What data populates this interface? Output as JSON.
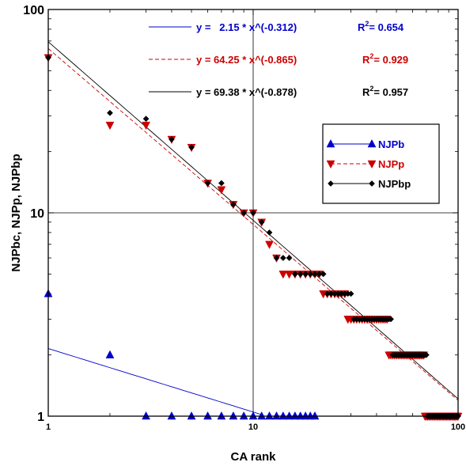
{
  "chart_data": {
    "type": "scatter",
    "xlabel": "CA  rank",
    "ylabel": "NJPbc,  NJPp,  NJPbp",
    "xscale": "log",
    "yscale": "log",
    "xlim": [
      1,
      100
    ],
    "ylim": [
      1,
      100
    ],
    "x_ticks": [
      "1",
      "10",
      "100"
    ],
    "y_ticks": [
      "1",
      "10",
      "100"
    ],
    "grid": "major",
    "legend_placement": "center-right",
    "series": [
      {
        "name": "NJPb",
        "color": "#0000cc",
        "marker": "triangle-up",
        "line": "solid",
        "x": [
          1,
          2,
          3,
          4,
          5,
          6,
          7,
          8,
          9,
          10,
          11,
          12,
          13,
          14,
          15,
          16,
          17,
          18,
          19,
          20
        ],
        "y": [
          4,
          2,
          1,
          1,
          1,
          1,
          1,
          1,
          1,
          1,
          1,
          1,
          1,
          1,
          1,
          1,
          1,
          1,
          1,
          1
        ],
        "fit": {
          "a": 2.15,
          "b": -0.312,
          "r2": 0.654
        }
      },
      {
        "name": "NJPp",
        "color": "#cc0000",
        "marker": "triangle-down",
        "line": "dashed",
        "x": [
          1,
          2,
          3,
          4,
          5,
          6,
          7,
          8,
          9,
          10,
          11,
          12,
          13,
          14,
          15,
          16,
          17,
          18,
          19,
          20,
          21,
          22,
          23,
          24,
          25,
          26,
          27,
          28,
          29,
          30,
          31,
          32,
          33,
          34,
          35,
          36,
          37,
          38,
          39,
          40,
          41,
          42,
          43,
          44,
          45,
          46,
          47,
          48,
          49,
          50,
          51,
          52,
          53,
          54,
          55,
          56,
          57,
          58,
          59,
          60,
          61,
          62,
          63,
          64,
          65,
          66,
          67,
          68,
          69,
          70,
          71,
          72,
          73,
          74,
          75,
          76,
          77,
          78,
          79,
          80,
          81,
          82,
          83,
          84,
          85,
          86,
          87,
          88,
          89,
          90,
          91,
          92,
          93,
          94,
          95,
          96,
          97,
          98,
          99,
          100
        ],
        "y": [
          58,
          27,
          27,
          23,
          21,
          14,
          13,
          11,
          10,
          10,
          9,
          7,
          6,
          5,
          5,
          5,
          5,
          5,
          5,
          5,
          5,
          4,
          4,
          4,
          4,
          4,
          4,
          4,
          3,
          3,
          3,
          3,
          3,
          3,
          3,
          3,
          3,
          3,
          3,
          3,
          3,
          3,
          3,
          3,
          3,
          2,
          2,
          2,
          2,
          2,
          2,
          2,
          2,
          2,
          2,
          2,
          2,
          2,
          2,
          2,
          2,
          2,
          2,
          2,
          2,
          2,
          2,
          2,
          1,
          1,
          1,
          1,
          1,
          1,
          1,
          1,
          1,
          1,
          1,
          1,
          1,
          1,
          1,
          1,
          1,
          1,
          1,
          1,
          1,
          1,
          1,
          1,
          1,
          1,
          1,
          1,
          1,
          1,
          1,
          1
        ],
        "fit": {
          "a": 64.25,
          "b": -0.865,
          "r2": 0.929
        }
      },
      {
        "name": "NJPbp",
        "color": "#000000",
        "marker": "diamond",
        "line": "solid",
        "x": [
          1,
          2,
          3,
          4,
          5,
          6,
          7,
          8,
          9,
          10,
          11,
          12,
          13,
          14,
          15,
          16,
          17,
          18,
          19,
          20,
          21,
          22,
          23,
          24,
          25,
          26,
          27,
          28,
          29,
          30,
          31,
          32,
          33,
          34,
          35,
          36,
          37,
          38,
          39,
          40,
          41,
          42,
          43,
          44,
          45,
          46,
          47,
          48,
          49,
          50,
          51,
          52,
          53,
          54,
          55,
          56,
          57,
          58,
          59,
          60,
          61,
          62,
          63,
          64,
          65,
          66,
          67,
          68,
          69,
          70,
          71,
          72,
          73,
          74,
          75,
          76,
          77,
          78,
          79,
          80,
          81,
          82,
          83,
          84,
          85,
          86,
          87,
          88,
          89,
          90,
          91,
          92,
          93,
          94,
          95,
          96,
          97,
          98,
          99,
          100
        ],
        "y": [
          58,
          31,
          29,
          23,
          21,
          14,
          14,
          11,
          10,
          10,
          9,
          8,
          6,
          6,
          6,
          5,
          5,
          5,
          5,
          5,
          5,
          5,
          4,
          4,
          4,
          4,
          4,
          4,
          4,
          4,
          3,
          3,
          3,
          3,
          3,
          3,
          3,
          3,
          3,
          3,
          3,
          3,
          3,
          3,
          3,
          3,
          3,
          2,
          2,
          2,
          2,
          2,
          2,
          2,
          2,
          2,
          2,
          2,
          2,
          2,
          2,
          2,
          2,
          2,
          2,
          2,
          2,
          2,
          2,
          2,
          1,
          1,
          1,
          1,
          1,
          1,
          1,
          1,
          1,
          1,
          1,
          1,
          1,
          1,
          1,
          1,
          1,
          1,
          1,
          1,
          1,
          1,
          1,
          1,
          1,
          1,
          1,
          1,
          1,
          1
        ],
        "fit": {
          "a": 69.38,
          "b": -0.878,
          "r2": 0.957
        }
      }
    ],
    "fit_labels": [
      {
        "series": "NJPb",
        "eq": "y =   2.15 * x^(-0.312)",
        "r2_label": "R",
        "r2_sup": "2",
        "r2_value": "= 0.654",
        "color": "#0000cc"
      },
      {
        "series": "NJPp",
        "eq": "y = 64.25 * x^(-0.865)",
        "r2_label": "R",
        "r2_sup": "2",
        "r2_value": "= 0.929",
        "color": "#cc0000"
      },
      {
        "series": "NJPbp",
        "eq": "y = 69.38 * x^(-0.878)",
        "r2_label": "R",
        "r2_sup": "2",
        "r2_value": "= 0.957",
        "color": "#000000"
      }
    ]
  }
}
